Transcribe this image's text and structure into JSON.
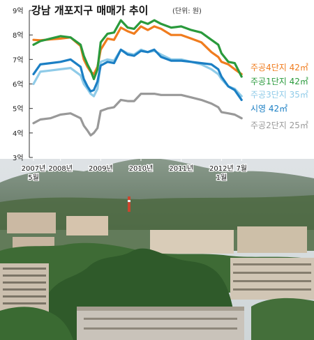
{
  "chart_data": {
    "type": "line",
    "title": "강남 개포지구 매매가 추이",
    "subtitle": "(단위: 원)",
    "ylim": [
      3,
      9
    ],
    "y_ticks": [
      {
        "value": 3,
        "label": "3억"
      },
      {
        "value": 4,
        "label": "4억"
      },
      {
        "value": 5,
        "label": "5억"
      },
      {
        "value": 6,
        "label": "6억"
      },
      {
        "value": 7,
        "label": "7억"
      },
      {
        "value": 8,
        "label": "8억"
      },
      {
        "value": 9,
        "label": "9억"
      }
    ],
    "xlim": [
      2007.33,
      2012.6
    ],
    "x_ticks": [
      {
        "value": 2007.33,
        "label": "2007년",
        "sub": "5월"
      },
      {
        "value": 2008.0,
        "label": "2008년",
        "sub": ""
      },
      {
        "value": 2009.0,
        "label": "2009년",
        "sub": ""
      },
      {
        "value": 2010.0,
        "label": "2010년",
        "sub": ""
      },
      {
        "value": 2011.0,
        "label": "2011년",
        "sub": ""
      },
      {
        "value": 2012.0,
        "label": "2012년",
        "sub": "1월"
      },
      {
        "value": 2012.5,
        "label": "7월",
        "sub": ""
      }
    ],
    "grid": false,
    "legend": "right",
    "series": [
      {
        "name": "주공4단지 42㎡",
        "color": "#f07c1e",
        "x": [
          2007.33,
          2007.5,
          2007.75,
          2008.0,
          2008.25,
          2008.5,
          2008.58,
          2008.67,
          2008.75,
          2008.83,
          2008.92,
          2009.0,
          2009.17,
          2009.33,
          2009.5,
          2009.67,
          2009.83,
          2010.0,
          2010.17,
          2010.33,
          2010.5,
          2010.75,
          2011.0,
          2011.25,
          2011.5,
          2011.75,
          2011.92,
          2012.0,
          2012.17,
          2012.33,
          2012.5
        ],
        "y": [
          7.8,
          7.78,
          7.82,
          7.85,
          7.9,
          7.55,
          7.0,
          6.7,
          6.5,
          6.4,
          6.7,
          7.4,
          7.85,
          7.8,
          8.3,
          8.15,
          8.05,
          8.35,
          8.2,
          8.35,
          8.25,
          8.0,
          8.0,
          7.85,
          7.7,
          7.3,
          7.1,
          6.9,
          6.8,
          6.6,
          6.4
        ]
      },
      {
        "name": "주공1단지 42㎡",
        "color": "#2a9a3c",
        "x": [
          2007.33,
          2007.5,
          2007.75,
          2008.0,
          2008.25,
          2008.5,
          2008.58,
          2008.67,
          2008.75,
          2008.83,
          2008.92,
          2009.0,
          2009.17,
          2009.33,
          2009.5,
          2009.67,
          2009.83,
          2010.0,
          2010.17,
          2010.33,
          2010.5,
          2010.75,
          2011.0,
          2011.25,
          2011.5,
          2011.75,
          2011.92,
          2012.0,
          2012.17,
          2012.33,
          2012.5
        ],
        "y": [
          7.6,
          7.75,
          7.85,
          7.95,
          7.9,
          7.6,
          7.15,
          6.8,
          6.55,
          6.2,
          6.6,
          7.7,
          8.05,
          8.1,
          8.6,
          8.3,
          8.25,
          8.55,
          8.45,
          8.6,
          8.45,
          8.3,
          8.35,
          8.2,
          8.1,
          7.8,
          7.6,
          7.25,
          6.9,
          6.85,
          6.3
        ]
      },
      {
        "name": "주공3단지 35㎡",
        "color": "#8fcbe8",
        "x": [
          2007.33,
          2007.5,
          2007.75,
          2008.0,
          2008.25,
          2008.5,
          2008.58,
          2008.67,
          2008.75,
          2008.83,
          2008.92,
          2009.0,
          2009.17,
          2009.33,
          2009.5,
          2009.67,
          2009.83,
          2010.0,
          2010.17,
          2010.33,
          2010.5,
          2010.75,
          2011.0,
          2011.25,
          2011.5,
          2011.75,
          2011.92,
          2012.0,
          2012.17,
          2012.33,
          2012.5
        ],
        "y": [
          6.0,
          6.5,
          6.55,
          6.6,
          6.65,
          6.35,
          6.0,
          5.8,
          5.6,
          5.5,
          5.8,
          6.9,
          7.0,
          6.95,
          7.4,
          7.25,
          7.2,
          7.4,
          7.3,
          7.35,
          7.2,
          7.0,
          7.0,
          6.9,
          6.8,
          6.6,
          6.4,
          6.2,
          5.9,
          5.8,
          5.5
        ]
      },
      {
        "name": "시영 42㎡",
        "color": "#1b7fc4",
        "x": [
          2007.33,
          2007.5,
          2007.75,
          2008.0,
          2008.25,
          2008.5,
          2008.58,
          2008.67,
          2008.75,
          2008.83,
          2008.92,
          2009.0,
          2009.17,
          2009.33,
          2009.5,
          2009.67,
          2009.83,
          2010.0,
          2010.17,
          2010.33,
          2010.5,
          2010.75,
          2011.0,
          2011.25,
          2011.5,
          2011.75,
          2011.92,
          2012.0,
          2012.17,
          2012.33,
          2012.5
        ],
        "y": [
          6.4,
          6.8,
          6.85,
          6.9,
          7.0,
          6.7,
          6.2,
          5.9,
          5.7,
          5.75,
          6.1,
          6.75,
          6.9,
          6.85,
          7.4,
          7.2,
          7.15,
          7.35,
          7.3,
          7.4,
          7.1,
          6.95,
          6.95,
          6.9,
          6.85,
          6.8,
          6.6,
          6.3,
          5.9,
          5.75,
          5.35
        ]
      },
      {
        "name": "주공2단지 25㎡",
        "color": "#999999",
        "x": [
          2007.33,
          2007.5,
          2007.75,
          2008.0,
          2008.25,
          2008.5,
          2008.58,
          2008.67,
          2008.75,
          2008.83,
          2008.92,
          2009.0,
          2009.17,
          2009.33,
          2009.5,
          2009.67,
          2009.83,
          2010.0,
          2010.17,
          2010.33,
          2010.5,
          2010.75,
          2011.0,
          2011.25,
          2011.5,
          2011.75,
          2011.92,
          2012.0,
          2012.17,
          2012.33,
          2012.5
        ],
        "y": [
          4.4,
          4.55,
          4.6,
          4.75,
          4.8,
          4.6,
          4.3,
          4.1,
          3.9,
          4.0,
          4.2,
          4.9,
          5.0,
          5.05,
          5.35,
          5.3,
          5.3,
          5.6,
          5.6,
          5.6,
          5.55,
          5.55,
          5.55,
          5.45,
          5.35,
          5.2,
          5.05,
          4.85,
          4.8,
          4.75,
          4.6
        ]
      }
    ]
  },
  "photo": {
    "description_icon": "apartment-complex-photo"
  }
}
